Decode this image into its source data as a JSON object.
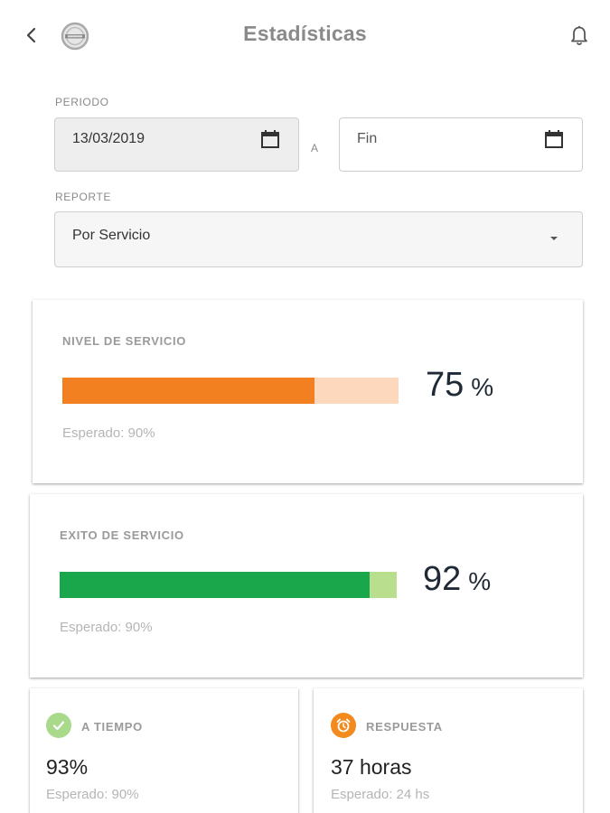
{
  "header": {
    "title": "Estadísticas",
    "back_icon": "chevron-left-icon",
    "logo_icon": "volvo-logo-icon",
    "notification_icon": "bell-icon"
  },
  "form": {
    "period_label": "PERIODO",
    "start_date_value": "13/03/2019",
    "separator": "A",
    "end_date_placeholder": "Fin",
    "report_label": "REPORTE",
    "report_selected": "Por Servicio"
  },
  "cards": {
    "service_level": {
      "label": "NIVEL DE SERVICIO",
      "value": "75",
      "unit": "%",
      "progress": 0.75,
      "expected": "Esperado: 90%",
      "color_fill": "#f28020",
      "color_track": "#fdd8bd"
    },
    "service_success": {
      "label": "EXITO DE SERVICIO",
      "value": "92",
      "unit": "%",
      "progress": 0.92,
      "expected": "Esperado: 90%",
      "color_fill": "#1aa64a",
      "color_track": "#b9de8e"
    },
    "on_time": {
      "label": "A TIEMPO",
      "value": "93%",
      "expected": "Esperado: 90%",
      "icon": "check-circle-icon",
      "color": "#a9d98a"
    },
    "response": {
      "label": "RESPUESTA",
      "value": "37 horas",
      "expected": "Esperado: 24 hs",
      "icon": "alarm-clock-icon",
      "color": "#f28a1e"
    }
  }
}
